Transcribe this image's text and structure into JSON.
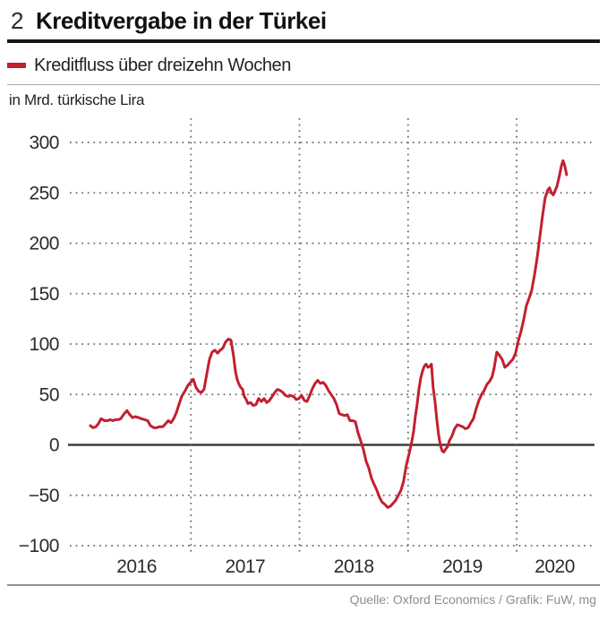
{
  "header": {
    "number": "2",
    "title": "Kreditvergabe in der Türkei"
  },
  "legend": {
    "label": "Kreditfluss über dreizehn Wochen"
  },
  "unit_label": "in Mrd. türkische Lira",
  "footer": {
    "source": "Quelle: Oxford Economics / Grafik: FuW, mg"
  },
  "colors": {
    "line": "#c2202f",
    "title_rule": "#161616",
    "thin_rule": "#a9a9a9",
    "bottom_rule": "#8f8f8f",
    "grid_dots": "#6f6f6f",
    "zero_axis": "#3b3b3b",
    "tick_text": "#2b2b2b",
    "source_text": "#8d8d8d"
  },
  "chart_data": {
    "type": "line",
    "title": "Kreditvergabe in der Türkei",
    "series_name": "Kreditfluss über dreizehn Wochen",
    "ylabel": "in Mrd. türkische Lira",
    "ylim": [
      -100,
      300
    ],
    "yticks": [
      {
        "v": 300,
        "label": "300"
      },
      {
        "v": 250,
        "label": "250"
      },
      {
        "v": 200,
        "label": "200"
      },
      {
        "v": 150,
        "label": "150"
      },
      {
        "v": 100,
        "label": "100"
      },
      {
        "v": 50,
        "label": "50"
      },
      {
        "v": 0,
        "label": "0"
      },
      {
        "v": -50,
        "label": "−50"
      },
      {
        "v": -100,
        "label": "−100"
      }
    ],
    "xlim": [
      2015.885,
      2020.7
    ],
    "x_gridlines_at": [
      2017,
      2018,
      2019,
      2020
    ],
    "xtick_labels": [
      {
        "year": 2016,
        "label": "2016"
      },
      {
        "year": 2017,
        "label": "2017"
      },
      {
        "year": 2018,
        "label": "2018"
      },
      {
        "year": 2019,
        "label": "2019"
      },
      {
        "year": 2020,
        "label": "2020"
      }
    ],
    "grid": "dotted",
    "legend_position": "top",
    "line_color": "#c2202f",
    "points": [
      [
        2016.074,
        19
      ],
      [
        2016.099,
        17
      ],
      [
        2016.124,
        18
      ],
      [
        2016.148,
        21
      ],
      [
        2016.173,
        26
      ],
      [
        2016.206,
        24
      ],
      [
        2016.231,
        24
      ],
      [
        2016.256,
        25
      ],
      [
        2016.28,
        24
      ],
      [
        2016.305,
        25
      ],
      [
        2016.33,
        25
      ],
      [
        2016.354,
        26
      ],
      [
        2016.379,
        30
      ],
      [
        2016.412,
        34
      ],
      [
        2016.437,
        30
      ],
      [
        2016.462,
        27
      ],
      [
        2016.486,
        28
      ],
      [
        2016.519,
        27
      ],
      [
        2016.544,
        26
      ],
      [
        2016.577,
        25
      ],
      [
        2016.602,
        24
      ],
      [
        2016.627,
        19
      ],
      [
        2016.66,
        17
      ],
      [
        2016.684,
        17
      ],
      [
        2016.709,
        18
      ],
      [
        2016.742,
        18
      ],
      [
        2016.767,
        21
      ],
      [
        2016.791,
        24
      ],
      [
        2016.816,
        22
      ],
      [
        2016.841,
        26
      ],
      [
        2016.866,
        32
      ],
      [
        2016.89,
        40
      ],
      [
        2016.915,
        48
      ],
      [
        2016.948,
        54
      ],
      [
        2016.973,
        59
      ],
      [
        2016.997,
        62
      ],
      [
        2017.022,
        65
      ],
      [
        2017.047,
        57
      ],
      [
        2017.072,
        53
      ],
      [
        2017.096,
        52
      ],
      [
        2017.121,
        55
      ],
      [
        2017.146,
        70
      ],
      [
        2017.171,
        85
      ],
      [
        2017.195,
        92
      ],
      [
        2017.22,
        94
      ],
      [
        2017.245,
        91
      ],
      [
        2017.27,
        94
      ],
      [
        2017.294,
        96
      ],
      [
        2017.319,
        102
      ],
      [
        2017.344,
        105
      ],
      [
        2017.369,
        104
      ],
      [
        2017.393,
        88
      ],
      [
        2017.41,
        73
      ],
      [
        2017.426,
        65
      ],
      [
        2017.443,
        60
      ],
      [
        2017.459,
        57
      ],
      [
        2017.476,
        55
      ],
      [
        2017.492,
        48
      ],
      [
        2017.509,
        45
      ],
      [
        2017.525,
        41
      ],
      [
        2017.55,
        42
      ],
      [
        2017.575,
        39
      ],
      [
        2017.599,
        40
      ],
      [
        2017.624,
        46
      ],
      [
        2017.649,
        43
      ],
      [
        2017.674,
        46
      ],
      [
        2017.698,
        42
      ],
      [
        2017.723,
        44
      ],
      [
        2017.748,
        48
      ],
      [
        2017.772,
        52
      ],
      [
        2017.797,
        55
      ],
      [
        2017.822,
        54
      ],
      [
        2017.847,
        52
      ],
      [
        2017.871,
        49
      ],
      [
        2017.896,
        48
      ],
      [
        2017.921,
        49
      ],
      [
        2017.946,
        48
      ],
      [
        2017.97,
        45
      ],
      [
        2017.995,
        46
      ],
      [
        2018.02,
        49
      ],
      [
        2018.045,
        44
      ],
      [
        2018.069,
        43
      ],
      [
        2018.094,
        49
      ],
      [
        2018.119,
        56
      ],
      [
        2018.144,
        61
      ],
      [
        2018.168,
        64
      ],
      [
        2018.193,
        61
      ],
      [
        2018.218,
        62
      ],
      [
        2018.242,
        59
      ],
      [
        2018.267,
        54
      ],
      [
        2018.292,
        50
      ],
      [
        2018.317,
        46
      ],
      [
        2018.341,
        40
      ],
      [
        2018.366,
        31
      ],
      [
        2018.391,
        30
      ],
      [
        2018.415,
        29
      ],
      [
        2018.44,
        30
      ],
      [
        2018.465,
        24
      ],
      [
        2018.49,
        24
      ],
      [
        2018.514,
        23
      ],
      [
        2018.539,
        12
      ],
      [
        2018.564,
        4
      ],
      [
        2018.589,
        -5
      ],
      [
        2018.613,
        -16
      ],
      [
        2018.638,
        -23
      ],
      [
        2018.663,
        -33
      ],
      [
        2018.687,
        -39
      ],
      [
        2018.712,
        -45
      ],
      [
        2018.737,
        -52
      ],
      [
        2018.762,
        -57
      ],
      [
        2018.786,
        -59
      ],
      [
        2018.811,
        -62
      ],
      [
        2018.836,
        -61
      ],
      [
        2018.861,
        -58
      ],
      [
        2018.885,
        -55
      ],
      [
        2018.91,
        -50
      ],
      [
        2018.935,
        -45
      ],
      [
        2018.959,
        -36
      ],
      [
        2018.984,
        -20
      ],
      [
        2019.009,
        -9
      ],
      [
        2019.034,
        3
      ],
      [
        2019.05,
        13
      ],
      [
        2019.067,
        28
      ],
      [
        2019.083,
        40
      ],
      [
        2019.1,
        55
      ],
      [
        2019.116,
        66
      ],
      [
        2019.133,
        73
      ],
      [
        2019.149,
        78
      ],
      [
        2019.166,
        80
      ],
      [
        2019.182,
        77
      ],
      [
        2019.199,
        78
      ],
      [
        2019.215,
        80
      ],
      [
        2019.231,
        57
      ],
      [
        2019.248,
        43
      ],
      [
        2019.264,
        26
      ],
      [
        2019.281,
        10
      ],
      [
        2019.297,
        0
      ],
      [
        2019.314,
        -6
      ],
      [
        2019.33,
        -7
      ],
      [
        2019.347,
        -4
      ],
      [
        2019.363,
        -2
      ],
      [
        2019.38,
        4
      ],
      [
        2019.405,
        9
      ],
      [
        2019.429,
        16
      ],
      [
        2019.454,
        20
      ],
      [
        2019.479,
        19
      ],
      [
        2019.503,
        18
      ],
      [
        2019.528,
        16
      ],
      [
        2019.553,
        17
      ],
      [
        2019.578,
        22
      ],
      [
        2019.602,
        26
      ],
      [
        2019.627,
        36
      ],
      [
        2019.652,
        44
      ],
      [
        2019.677,
        50
      ],
      [
        2019.701,
        54
      ],
      [
        2019.726,
        60
      ],
      [
        2019.751,
        63
      ],
      [
        2019.775,
        68
      ],
      [
        2019.792,
        76
      ],
      [
        2019.817,
        92
      ],
      [
        2019.841,
        89
      ],
      [
        2019.866,
        85
      ],
      [
        2019.891,
        77
      ],
      [
        2019.916,
        79
      ],
      [
        2019.94,
        82
      ],
      [
        2019.965,
        85
      ],
      [
        2019.99,
        91
      ],
      [
        2020.015,
        103
      ],
      [
        2020.039,
        112
      ],
      [
        2020.064,
        124
      ],
      [
        2020.089,
        138
      ],
      [
        2020.113,
        145
      ],
      [
        2020.138,
        153
      ],
      [
        2020.163,
        168
      ],
      [
        2020.188,
        185
      ],
      [
        2020.212,
        205
      ],
      [
        2020.237,
        226
      ],
      [
        2020.262,
        245
      ],
      [
        2020.287,
        253
      ],
      [
        2020.303,
        255
      ],
      [
        2020.32,
        250
      ],
      [
        2020.336,
        248
      ],
      [
        2020.353,
        252
      ],
      [
        2020.369,
        256
      ],
      [
        2020.394,
        267
      ],
      [
        2020.41,
        276
      ],
      [
        2020.427,
        282
      ],
      [
        2020.443,
        277
      ],
      [
        2020.46,
        268
      ]
    ]
  }
}
